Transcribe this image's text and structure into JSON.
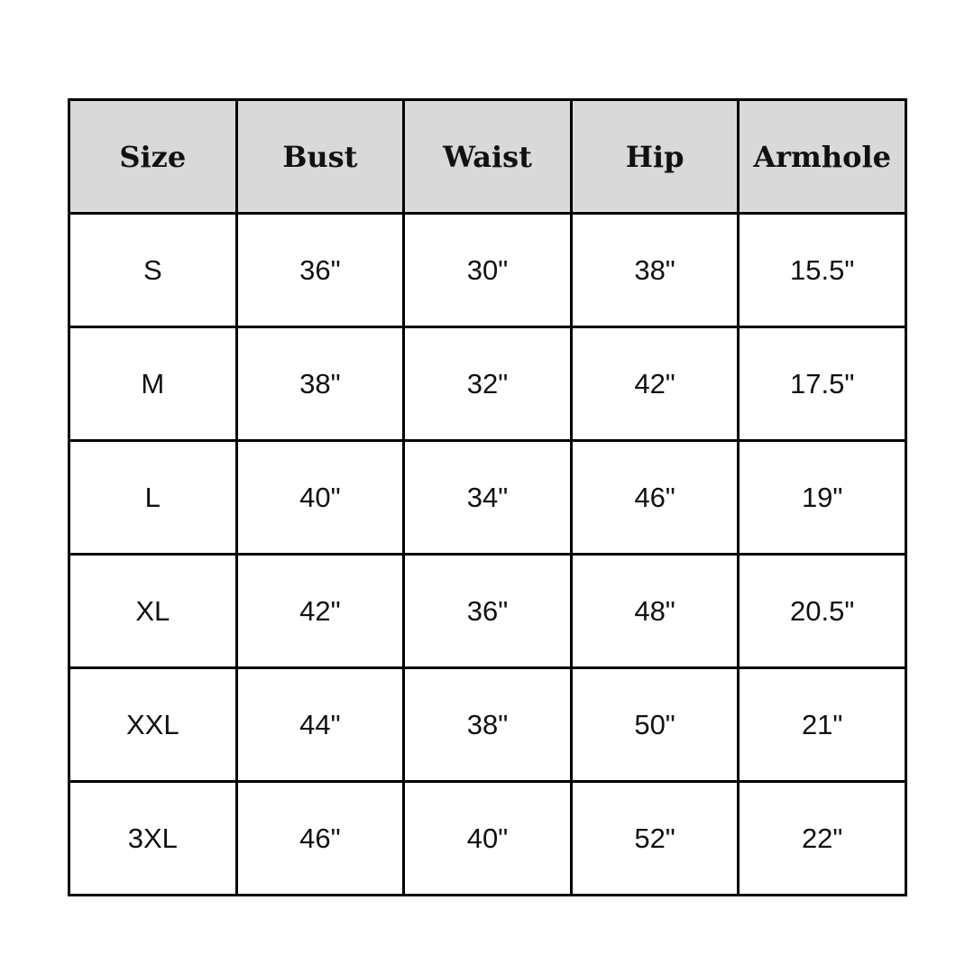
{
  "table": {
    "headers": [
      "Size",
      "Bust",
      "Waist",
      "Hip",
      "Armhole"
    ],
    "rows": [
      [
        "S",
        "36\"",
        "30\"",
        "38\"",
        "15.5\""
      ],
      [
        "M",
        "38\"",
        "32\"",
        "42\"",
        "17.5\""
      ],
      [
        "L",
        "40\"",
        "34\"",
        "46\"",
        "19\""
      ],
      [
        "XL",
        "42\"",
        "36\"",
        "48\"",
        "20.5\""
      ],
      [
        "XXL",
        "44\"",
        "38\"",
        "50\"",
        "21\""
      ],
      [
        "3XL",
        "46\"",
        "40\"",
        "52\"",
        "22\""
      ]
    ]
  }
}
